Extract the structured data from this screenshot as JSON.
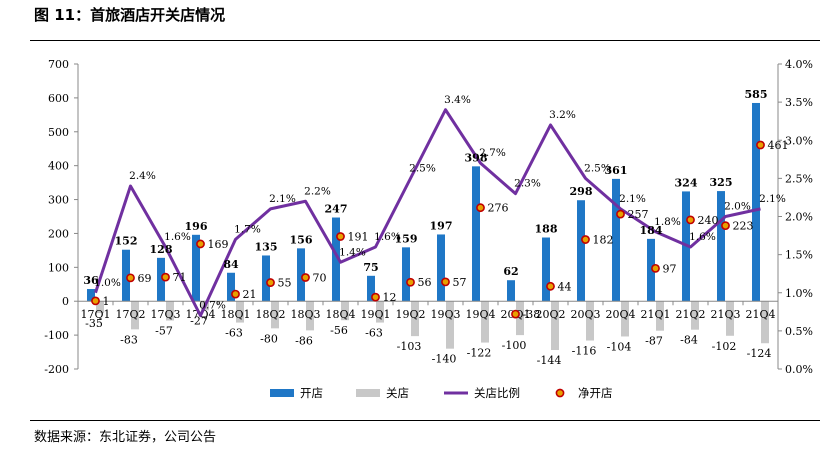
{
  "title": "图 11：首旅酒店开关店情况",
  "source": "数据来源：东北证券，公司公告",
  "chart_data": {
    "type": "bar",
    "categories": [
      "17Q1",
      "17Q2",
      "17Q3",
      "17Q4",
      "18Q1",
      "18Q2",
      "18Q3",
      "18Q4",
      "19Q1",
      "19Q2",
      "19Q3",
      "19Q4",
      "20Q1",
      "20Q2",
      "20Q3",
      "20Q4",
      "21Q1",
      "21Q2",
      "21Q3",
      "21Q4"
    ],
    "series": [
      {
        "name": "开店",
        "kind": "bar",
        "color": "#1f77c6",
        "values": [
          36,
          152,
          128,
          196,
          84,
          135,
          156,
          247,
          75,
          159,
          197,
          398,
          62,
          188,
          298,
          361,
          184,
          324,
          325,
          585
        ]
      },
      {
        "name": "关店",
        "kind": "bar",
        "color": "#c8c8c8",
        "values": [
          -35,
          -83,
          -57,
          -27,
          -63,
          -80,
          -86,
          -56,
          -63,
          -103,
          -140,
          -122,
          -100,
          -144,
          -116,
          -104,
          -87,
          -84,
          -102,
          -124
        ]
      },
      {
        "name": "关店比例",
        "kind": "line",
        "axis": "right",
        "color": "#7030a0",
        "values": [
          1.0,
          2.4,
          1.6,
          0.7,
          1.7,
          2.1,
          2.2,
          1.4,
          1.6,
          2.5,
          3.4,
          2.7,
          2.3,
          3.2,
          2.5,
          2.1,
          1.8,
          1.6,
          2.0,
          2.1
        ],
        "labels": [
          "1.0%",
          "2.4%",
          "1.6%",
          "0.7%",
          "1.7%",
          "2.1%",
          "2.2%",
          "1.4%",
          "1.6%",
          "2.5%",
          "3.4%",
          "2.7%",
          "2.3%",
          "3.2%",
          "2.5%",
          "2.1%",
          "1.8%",
          "1.6%",
          "2.0%",
          "2.1%"
        ]
      },
      {
        "name": "净开店",
        "kind": "scatter",
        "color": "#e8a000",
        "edge": "#c00000",
        "values": [
          1,
          69,
          71,
          169,
          21,
          55,
          70,
          191,
          12,
          56,
          57,
          276,
          -38,
          44,
          182,
          257,
          97,
          240,
          223,
          461
        ]
      }
    ],
    "left_axis": {
      "ylim": [
        -200,
        700
      ],
      "ticks": [
        -200,
        -100,
        0,
        100,
        200,
        300,
        400,
        500,
        600,
        700
      ]
    },
    "right_axis": {
      "ylim": [
        0.0,
        4.0
      ],
      "ticks": [
        "0.0%",
        "0.5%",
        "1.0%",
        "1.5%",
        "2.0%",
        "2.5%",
        "3.0%",
        "3.5%",
        "4.0%"
      ]
    },
    "legend": {
      "placement": "bottom",
      "entries": [
        "开店",
        "关店",
        "关店比例",
        "净开店"
      ]
    },
    "grid": false
  }
}
